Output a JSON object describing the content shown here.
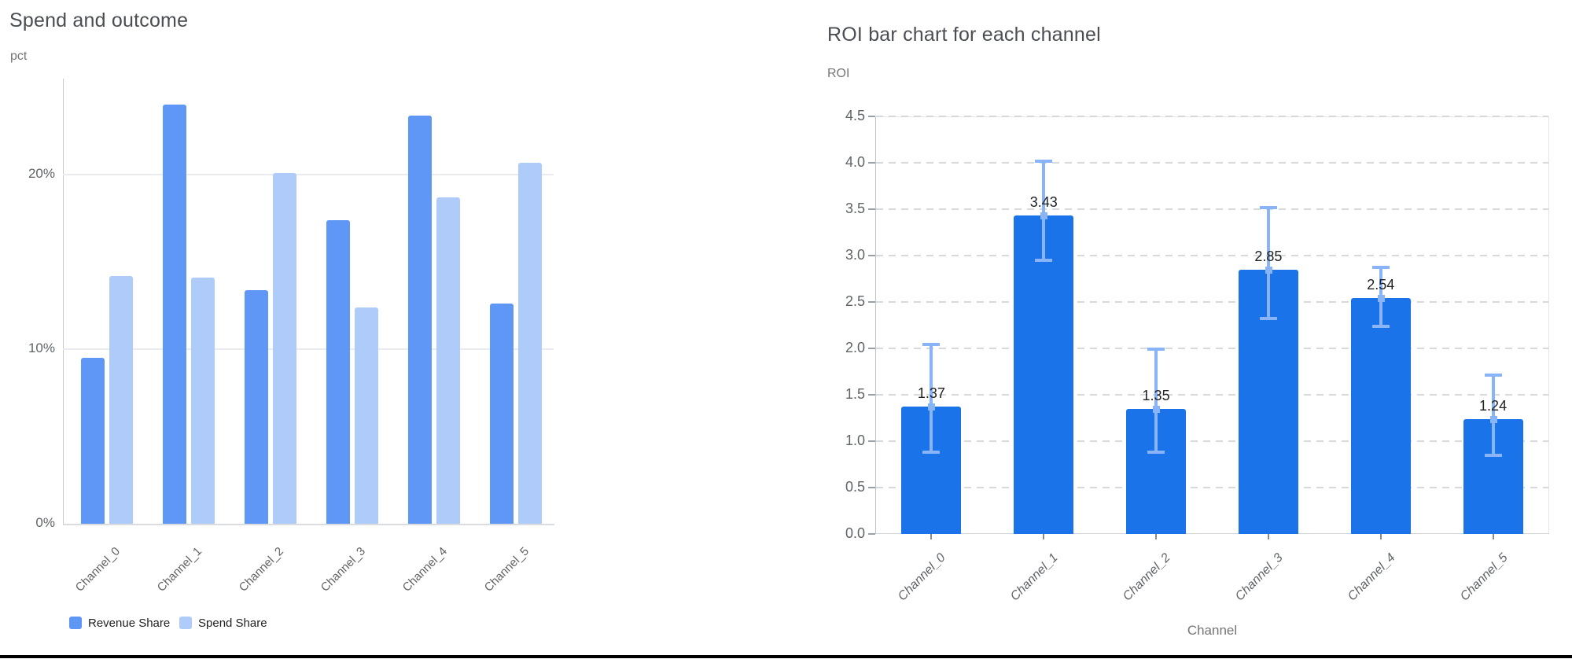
{
  "accents": {
    "revenue_share_color": "#5e97f6",
    "spend_share_color": "#aecbfa",
    "roi_bar_color": "#1a73e8",
    "roi_error_bar_color": "#8ab4f8",
    "bottom_rule_color": "#000000"
  },
  "chart_data": [
    {
      "type": "bar",
      "title": "Spend and outcome",
      "ylabel": "pct",
      "xlabel": "",
      "categories": [
        "Channel_0",
        "Channel_1",
        "Channel_2",
        "Channel_3",
        "Channel_4",
        "Channel_5"
      ],
      "series": [
        {
          "name": "Revenue Share",
          "color": "#5e97f6",
          "values": [
            9.5,
            24.0,
            13.4,
            17.4,
            23.4,
            12.6
          ]
        },
        {
          "name": "Spend Share",
          "color": "#aecbfa",
          "values": [
            14.2,
            14.1,
            20.1,
            12.4,
            18.7,
            20.7
          ]
        }
      ],
      "y_ticks": [
        {
          "label": "0%",
          "value": 0
        },
        {
          "label": "10%",
          "value": 10
        },
        {
          "label": "20%",
          "value": 20
        }
      ],
      "ylim": [
        0,
        25.5
      ],
      "grid": "solid",
      "legend_position": "bottom"
    },
    {
      "type": "bar",
      "title": "ROI bar chart for each channel",
      "ylabel": "ROI",
      "xlabel": "Channel",
      "categories": [
        "Channel_0",
        "Channel_1",
        "Channel_2",
        "Channel_3",
        "Channel_4",
        "Channel_5"
      ],
      "values": [
        1.37,
        3.43,
        1.35,
        2.85,
        2.54,
        1.24
      ],
      "value_labels": [
        "1.37",
        "3.43",
        "1.35",
        "2.85",
        "2.54",
        "1.24"
      ],
      "error_low": [
        0.88,
        2.95,
        0.88,
        2.32,
        2.24,
        0.85
      ],
      "error_high": [
        2.04,
        4.02,
        1.99,
        3.52,
        2.87,
        1.71
      ],
      "bar_color": "#1a73e8",
      "error_color": "#8ab4f8",
      "y_ticks": [
        {
          "label": "0.0",
          "value": 0.0
        },
        {
          "label": "0.5",
          "value": 0.5
        },
        {
          "label": "1.0",
          "value": 1.0
        },
        {
          "label": "1.5",
          "value": 1.5
        },
        {
          "label": "2.0",
          "value": 2.0
        },
        {
          "label": "2.5",
          "value": 2.5
        },
        {
          "label": "3.0",
          "value": 3.0
        },
        {
          "label": "3.5",
          "value": 3.5
        },
        {
          "label": "4.0",
          "value": 4.0
        },
        {
          "label": "4.5",
          "value": 4.5
        }
      ],
      "ylim": [
        0,
        4.5
      ],
      "grid": "dashed",
      "legend_position": "none"
    }
  ]
}
